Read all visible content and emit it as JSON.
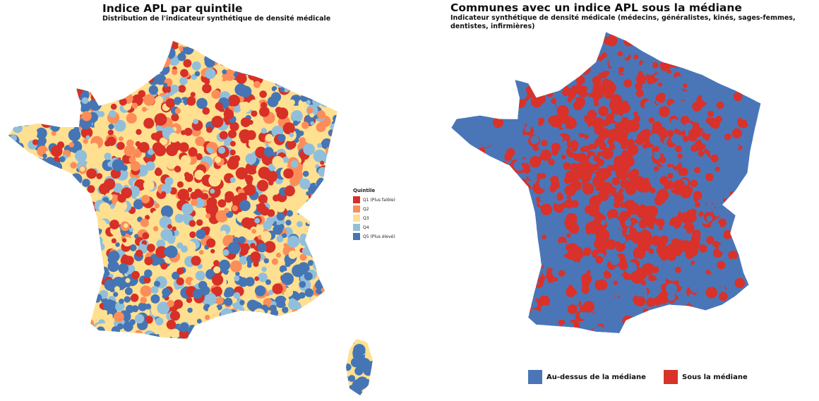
{
  "left_map": {
    "title": "Indice APL par quintile",
    "subtitle": "Distribution de l'indicateur synthétique de densité médicale",
    "legend": {
      "title": "Quintile",
      "items": [
        {
          "label": "Q1 (Plus faible)",
          "color": "#d73027"
        },
        {
          "label": "Q2",
          "color": "#fc8d59"
        },
        {
          "label": "Q3",
          "color": "#fee090"
        },
        {
          "label": "Q4",
          "color": "#91bfdb"
        },
        {
          "label": "Q5 (Plus élevé)",
          "color": "#4575b4"
        }
      ]
    }
  },
  "right_map": {
    "title": "Communes avec un indice APL sous la médiane",
    "subtitle": "Indicateur synthétique de densité médicale (médecins, généralistes, kinés, sages-femmes, dentistes, infirmières)",
    "legend": {
      "items": [
        {
          "label": "Au-dessus de la médiane",
          "color": "#4a76b8"
        },
        {
          "label": "Sous la médiane",
          "color": "#d8322a"
        }
      ]
    }
  }
}
